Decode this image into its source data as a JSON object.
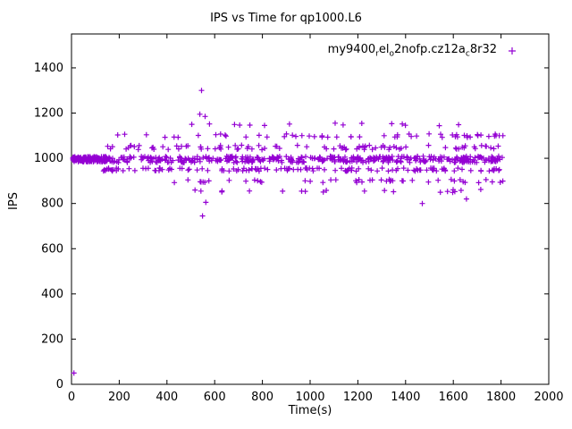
{
  "chart_data": {
    "type": "scatter",
    "title": "IPS vs Time for qp1000.L6",
    "xlabel": "Time(s)",
    "ylabel": "IPS",
    "xlim": [
      0,
      2000
    ],
    "ylim": [
      0,
      1550
    ],
    "xticks": [
      0,
      200,
      400,
      600,
      800,
      1000,
      1200,
      1400,
      1600,
      1800,
      2000
    ],
    "yticks": [
      0,
      200,
      400,
      600,
      800,
      1000,
      1200,
      1400
    ],
    "grid": false,
    "legend_position": "top-right-inside",
    "series": [
      {
        "name": "my9400_rel_o2nofp.cz12a_c8r32",
        "label_parts": [
          {
            "t": "my9400"
          },
          {
            "t": "r",
            "sub": true
          },
          {
            "t": "el"
          },
          {
            "t": "o",
            "sub": true
          },
          {
            "t": "2nofp.cz12a"
          },
          {
            "t": "c",
            "sub": true
          },
          {
            "t": "8r32"
          }
        ],
        "color": "#9400D3",
        "marker": "plus",
        "bands": [
          {
            "x0": 5,
            "x1": 150,
            "y": 995,
            "jitter": 12,
            "n": 130
          },
          {
            "x0": 150,
            "x1": 1810,
            "y": 995,
            "jitter": 14,
            "n": 400
          },
          {
            "x0": 120,
            "x1": 1810,
            "y": 950,
            "jitter": 7,
            "n": 130
          },
          {
            "x0": 150,
            "x1": 1810,
            "y": 1048,
            "jitter": 10,
            "n": 90
          },
          {
            "x0": 180,
            "x1": 900,
            "y": 1100,
            "jitter": 8,
            "n": 15
          },
          {
            "x0": 900,
            "x1": 1810,
            "y": 1100,
            "jitter": 8,
            "n": 40
          },
          {
            "x0": 500,
            "x1": 1790,
            "y": 1150,
            "jitter": 6,
            "n": 15
          },
          {
            "x0": 430,
            "x1": 1810,
            "y": 900,
            "jitter": 8,
            "n": 45
          },
          {
            "x0": 440,
            "x1": 1810,
            "y": 855,
            "jitter": 8,
            "n": 20
          }
        ],
        "outliers": [
          [
            10,
            50
          ],
          [
            545,
            1300
          ],
          [
            538,
            1195
          ],
          [
            560,
            1185
          ],
          [
            549,
            745
          ],
          [
            563,
            805
          ],
          [
            1470,
            800
          ],
          [
            1655,
            820
          ]
        ]
      }
    ]
  }
}
